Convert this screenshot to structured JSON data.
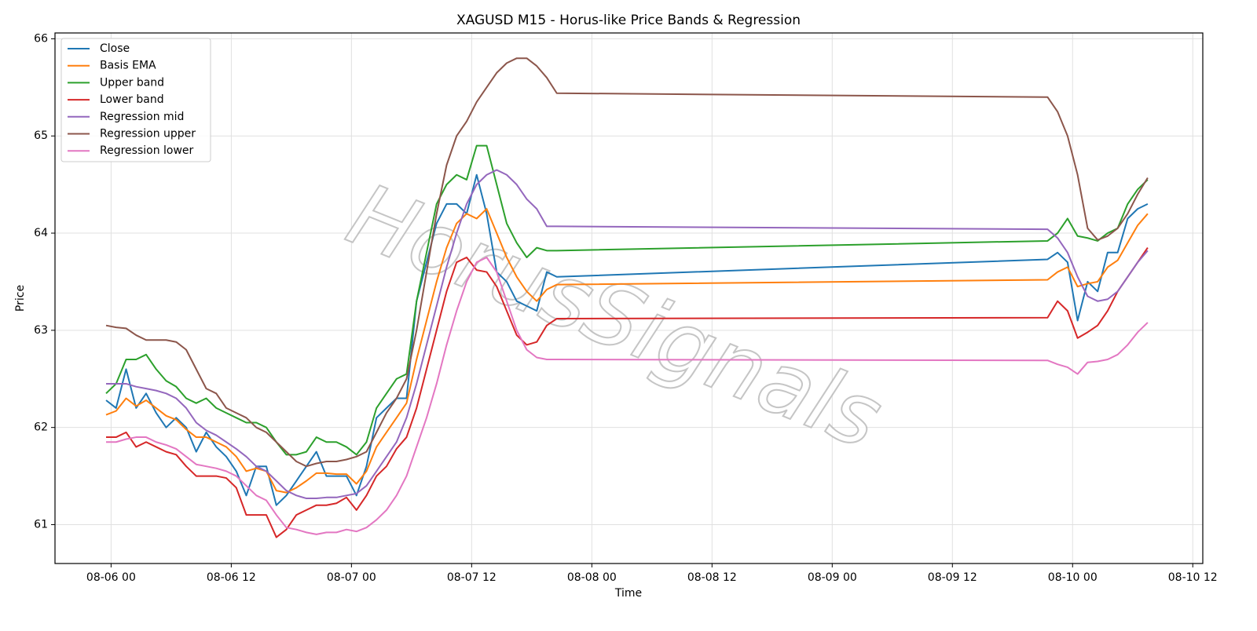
{
  "chart_data": {
    "type": "line",
    "title": "XAGUSD M15 - Horus-like Price Bands & Regression",
    "xlabel": "Time",
    "ylabel": "Price",
    "watermark": "HorusSignals",
    "x": [
      -0.5,
      0.5,
      1.5,
      2.5,
      3.5,
      4.5,
      5.5,
      6.5,
      7.5,
      8.5,
      9.5,
      10.5,
      11.5,
      12.5,
      13.5,
      14.5,
      15.5,
      16.5,
      17.5,
      18.5,
      19.5,
      20.5,
      21.5,
      22.5,
      23.5,
      24.5,
      25.5,
      26.5,
      27.5,
      28.5,
      29.5,
      30.5,
      31.5,
      32.5,
      33.5,
      34.5,
      35.5,
      36.5,
      37.5,
      38.5,
      39.5,
      40.5,
      41.5,
      42.5,
      43.5,
      44.5,
      93.5,
      94.5,
      95.5,
      96.5,
      97.5,
      98.5,
      99.5,
      100.5,
      101.5,
      102.5,
      103.5
    ],
    "series": [
      {
        "name": "Close",
        "color": "#1f77b4",
        "values": [
          62.28,
          62.2,
          62.6,
          62.2,
          62.35,
          62.15,
          62.0,
          62.1,
          62.0,
          61.75,
          61.95,
          61.8,
          61.7,
          61.55,
          61.3,
          61.6,
          61.6,
          61.2,
          61.3,
          61.45,
          61.6,
          61.75,
          61.5,
          61.5,
          61.5,
          61.3,
          61.6,
          62.1,
          62.2,
          62.3,
          62.3,
          63.3,
          63.7,
          64.1,
          64.3,
          64.3,
          64.2,
          64.6,
          64.2,
          63.6,
          63.5,
          63.3,
          63.25,
          63.2,
          63.6,
          63.55,
          63.73,
          63.8,
          63.7,
          63.1,
          63.5,
          63.4,
          63.8,
          63.8,
          64.15,
          64.25,
          64.3
        ]
      },
      {
        "name": "Basis EMA",
        "color": "#ff7f0e",
        "values": [
          62.13,
          62.17,
          62.3,
          62.22,
          62.28,
          62.2,
          62.12,
          62.08,
          61.98,
          61.9,
          61.9,
          61.85,
          61.8,
          61.7,
          61.55,
          61.58,
          61.55,
          61.35,
          61.33,
          61.38,
          61.45,
          61.53,
          61.53,
          61.52,
          61.52,
          61.42,
          61.55,
          61.8,
          61.95,
          62.1,
          62.25,
          62.7,
          63.1,
          63.5,
          63.85,
          64.1,
          64.2,
          64.15,
          64.25,
          64.0,
          63.75,
          63.55,
          63.4,
          63.3,
          63.42,
          63.47,
          63.52,
          63.6,
          63.65,
          63.45,
          63.48,
          63.5,
          63.65,
          63.72,
          63.9,
          64.08,
          64.2
        ]
      },
      {
        "name": "Upper band",
        "color": "#2ca02c",
        "values": [
          62.35,
          62.45,
          62.7,
          62.7,
          62.75,
          62.6,
          62.48,
          62.42,
          62.3,
          62.25,
          62.3,
          62.2,
          62.15,
          62.1,
          62.05,
          62.05,
          62.0,
          61.85,
          61.72,
          61.72,
          61.75,
          61.9,
          61.85,
          61.85,
          61.8,
          61.72,
          61.85,
          62.2,
          62.35,
          62.5,
          62.55,
          63.3,
          63.8,
          64.3,
          64.5,
          64.6,
          64.55,
          64.9,
          64.9,
          64.5,
          64.1,
          63.9,
          63.75,
          63.85,
          63.82,
          63.82,
          63.92,
          64.0,
          64.15,
          63.97,
          63.95,
          63.92,
          64.0,
          64.05,
          64.3,
          64.45,
          64.55
        ]
      },
      {
        "name": "Lower band",
        "color": "#d62728",
        "values": [
          61.9,
          61.9,
          61.95,
          61.8,
          61.85,
          61.8,
          61.75,
          61.72,
          61.6,
          61.5,
          61.5,
          61.5,
          61.48,
          61.38,
          61.1,
          61.1,
          61.1,
          60.87,
          60.95,
          61.1,
          61.15,
          61.2,
          61.2,
          61.22,
          61.28,
          61.15,
          61.3,
          61.5,
          61.6,
          61.78,
          61.9,
          62.2,
          62.6,
          63.0,
          63.4,
          63.7,
          63.75,
          63.62,
          63.6,
          63.45,
          63.2,
          62.95,
          62.85,
          62.88,
          63.05,
          63.12,
          63.13,
          63.3,
          63.2,
          62.92,
          62.98,
          63.05,
          63.2,
          63.4,
          63.55,
          63.7,
          63.85
        ]
      },
      {
        "name": "Regression mid",
        "color": "#9467bd",
        "values": [
          62.45,
          62.45,
          62.45,
          62.42,
          62.4,
          62.38,
          62.35,
          62.3,
          62.2,
          62.05,
          61.97,
          61.92,
          61.85,
          61.78,
          61.7,
          61.6,
          61.55,
          61.45,
          61.35,
          61.3,
          61.27,
          61.27,
          61.28,
          61.28,
          61.3,
          61.32,
          61.4,
          61.55,
          61.7,
          61.85,
          62.1,
          62.45,
          62.85,
          63.25,
          63.65,
          64.0,
          64.3,
          64.5,
          64.6,
          64.65,
          64.6,
          64.5,
          64.35,
          64.25,
          64.07,
          64.07,
          64.04,
          63.95,
          63.8,
          63.55,
          63.35,
          63.3,
          63.32,
          63.4,
          63.55,
          63.7,
          63.82
        ]
      },
      {
        "name": "Regression upper",
        "color": "#8c564b",
        "values": [
          63.05,
          63.03,
          63.02,
          62.95,
          62.9,
          62.9,
          62.9,
          62.88,
          62.8,
          62.6,
          62.4,
          62.35,
          62.2,
          62.15,
          62.1,
          62.0,
          61.95,
          61.85,
          61.75,
          61.65,
          61.6,
          61.63,
          61.65,
          61.65,
          61.67,
          61.7,
          61.75,
          61.95,
          62.15,
          62.3,
          62.5,
          63.0,
          63.6,
          64.2,
          64.7,
          65.0,
          65.15,
          65.35,
          65.5,
          65.65,
          65.75,
          65.8,
          65.8,
          65.72,
          65.6,
          65.44,
          65.4,
          65.25,
          65.0,
          64.6,
          64.05,
          63.93,
          63.97,
          64.05,
          64.2,
          64.4,
          64.57
        ]
      },
      {
        "name": "Regression lower",
        "color": "#e377c2",
        "values": [
          61.85,
          61.85,
          61.88,
          61.9,
          61.9,
          61.85,
          61.82,
          61.78,
          61.7,
          61.62,
          61.6,
          61.58,
          61.55,
          61.5,
          61.4,
          61.3,
          61.25,
          61.1,
          60.97,
          60.95,
          60.92,
          60.9,
          60.92,
          60.92,
          60.95,
          60.93,
          60.97,
          61.05,
          61.15,
          61.3,
          61.5,
          61.8,
          62.1,
          62.45,
          62.85,
          63.2,
          63.5,
          63.7,
          63.75,
          63.6,
          63.3,
          63.0,
          62.8,
          62.72,
          62.7,
          62.7,
          62.69,
          62.65,
          62.62,
          62.55,
          62.67,
          62.68,
          62.7,
          62.75,
          62.85,
          62.98,
          63.08
        ]
      }
    ],
    "xlim": [
      -5.6,
      109.0
    ],
    "xticks": [
      {
        "value": 0,
        "label": "08-06 00"
      },
      {
        "value": 12,
        "label": "08-06 12"
      },
      {
        "value": 24,
        "label": "08-07 00"
      },
      {
        "value": 36,
        "label": "08-07 12"
      },
      {
        "value": 48,
        "label": "08-08 00"
      },
      {
        "value": 60,
        "label": "08-08 12"
      },
      {
        "value": 72,
        "label": "08-09 00"
      },
      {
        "value": 84,
        "label": "08-09 12"
      },
      {
        "value": 96,
        "label": "08-10 00"
      },
      {
        "value": 108,
        "label": "08-10 12"
      }
    ],
    "ylim": [
      60.6,
      66.06
    ],
    "yticks": [
      61,
      62,
      63,
      64,
      65,
      66
    ],
    "grid": true,
    "legend": "upper left"
  }
}
